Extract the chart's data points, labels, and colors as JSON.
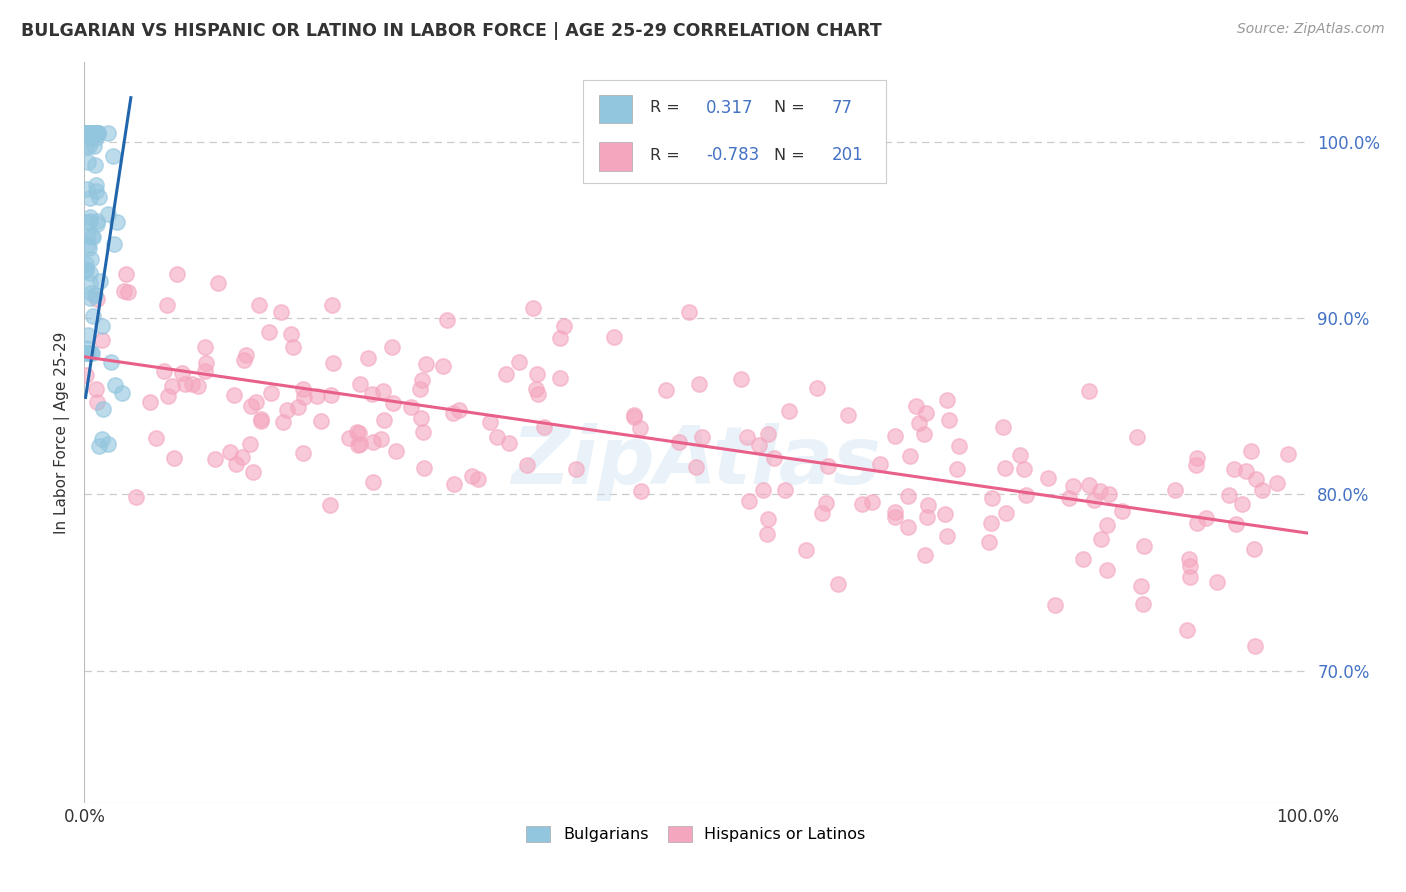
{
  "title": "BULGARIAN VS HISPANIC OR LATINO IN LABOR FORCE | AGE 25-29 CORRELATION CHART",
  "source": "Source: ZipAtlas.com",
  "ylabel": "In Labor Force | Age 25-29",
  "xlim": [
    0.0,
    1.0
  ],
  "ylim": [
    0.625,
    1.045
  ],
  "y_tick_vals_right": [
    0.7,
    0.8,
    0.9,
    1.0
  ],
  "y_tick_labels_right": [
    "70.0%",
    "80.0%",
    "90.0%",
    "100.0%"
  ],
  "legend_blue_r": "0.317",
  "legend_blue_n": "77",
  "legend_pink_r": "-0.783",
  "legend_pink_n": "201",
  "blue_color": "#92c5de",
  "pink_color": "#f4a6be",
  "blue_line_color": "#2166ac",
  "pink_line_color": "#e8608a",
  "blue_trendline_x": [
    0.001,
    0.038
  ],
  "blue_trendline_y": [
    0.855,
    1.025
  ],
  "pink_trendline_x": [
    0.0,
    1.0
  ],
  "pink_trendline_y": [
    0.878,
    0.778
  ],
  "watermark": "ZipAtlas",
  "background_color": "#ffffff",
  "grid_color": "#cccccc",
  "title_color": "#333333",
  "source_color": "#999999",
  "right_axis_color": "#4472c4",
  "legend_label_color": "#333333"
}
